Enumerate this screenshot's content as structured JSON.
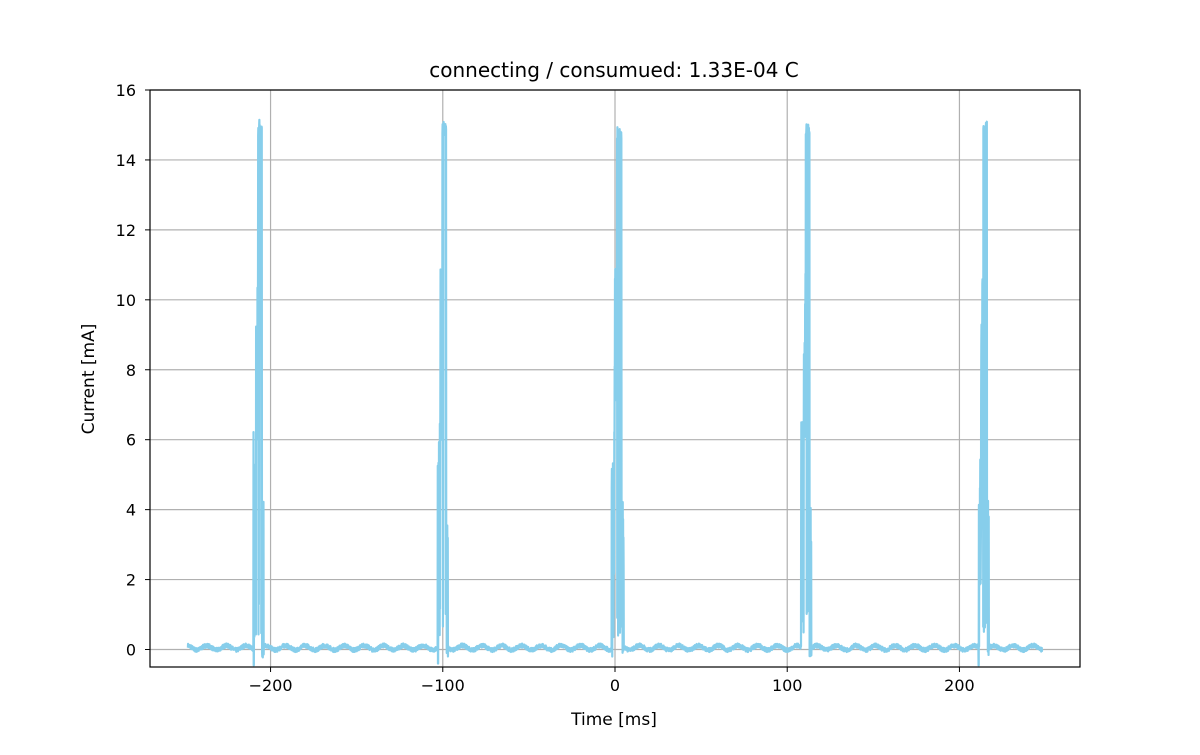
{
  "chart_data": {
    "type": "line",
    "title": "connecting / consumued: 1.33E-04 C",
    "xlabel": "Time [ms]",
    "ylabel": "Current [mA]",
    "xlim": [
      -270,
      270
    ],
    "ylim": [
      -0.5,
      16
    ],
    "xticks": [
      -200,
      -100,
      0,
      100,
      200
    ],
    "xtick_labels": [
      "−200",
      "−100",
      "0",
      "100",
      "200"
    ],
    "yticks": [
      0,
      2,
      4,
      6,
      8,
      10,
      12,
      14,
      16
    ],
    "ytick_labels": [
      "0",
      "2",
      "4",
      "6",
      "8",
      "10",
      "12",
      "14",
      "16"
    ],
    "grid": true,
    "legend": "none",
    "line_color": "#87ceeb",
    "x_range": [
      -248,
      248
    ],
    "baseline_current": 0.05,
    "baseline_ripple": 0.08,
    "pulses": [
      {
        "start": -210,
        "end": -204,
        "peak": 15.3,
        "min": -0.45
      },
      {
        "start": -103,
        "end": -97,
        "peak": 15.25,
        "min": -0.4
      },
      {
        "start": -2,
        "end": 5,
        "peak": 15.15,
        "min": -0.2
      },
      {
        "start": 108,
        "end": 114,
        "peak": 15.2,
        "min": -0.45
      },
      {
        "start": 211,
        "end": 217,
        "peak": 15.25,
        "min": -0.45
      }
    ]
  }
}
